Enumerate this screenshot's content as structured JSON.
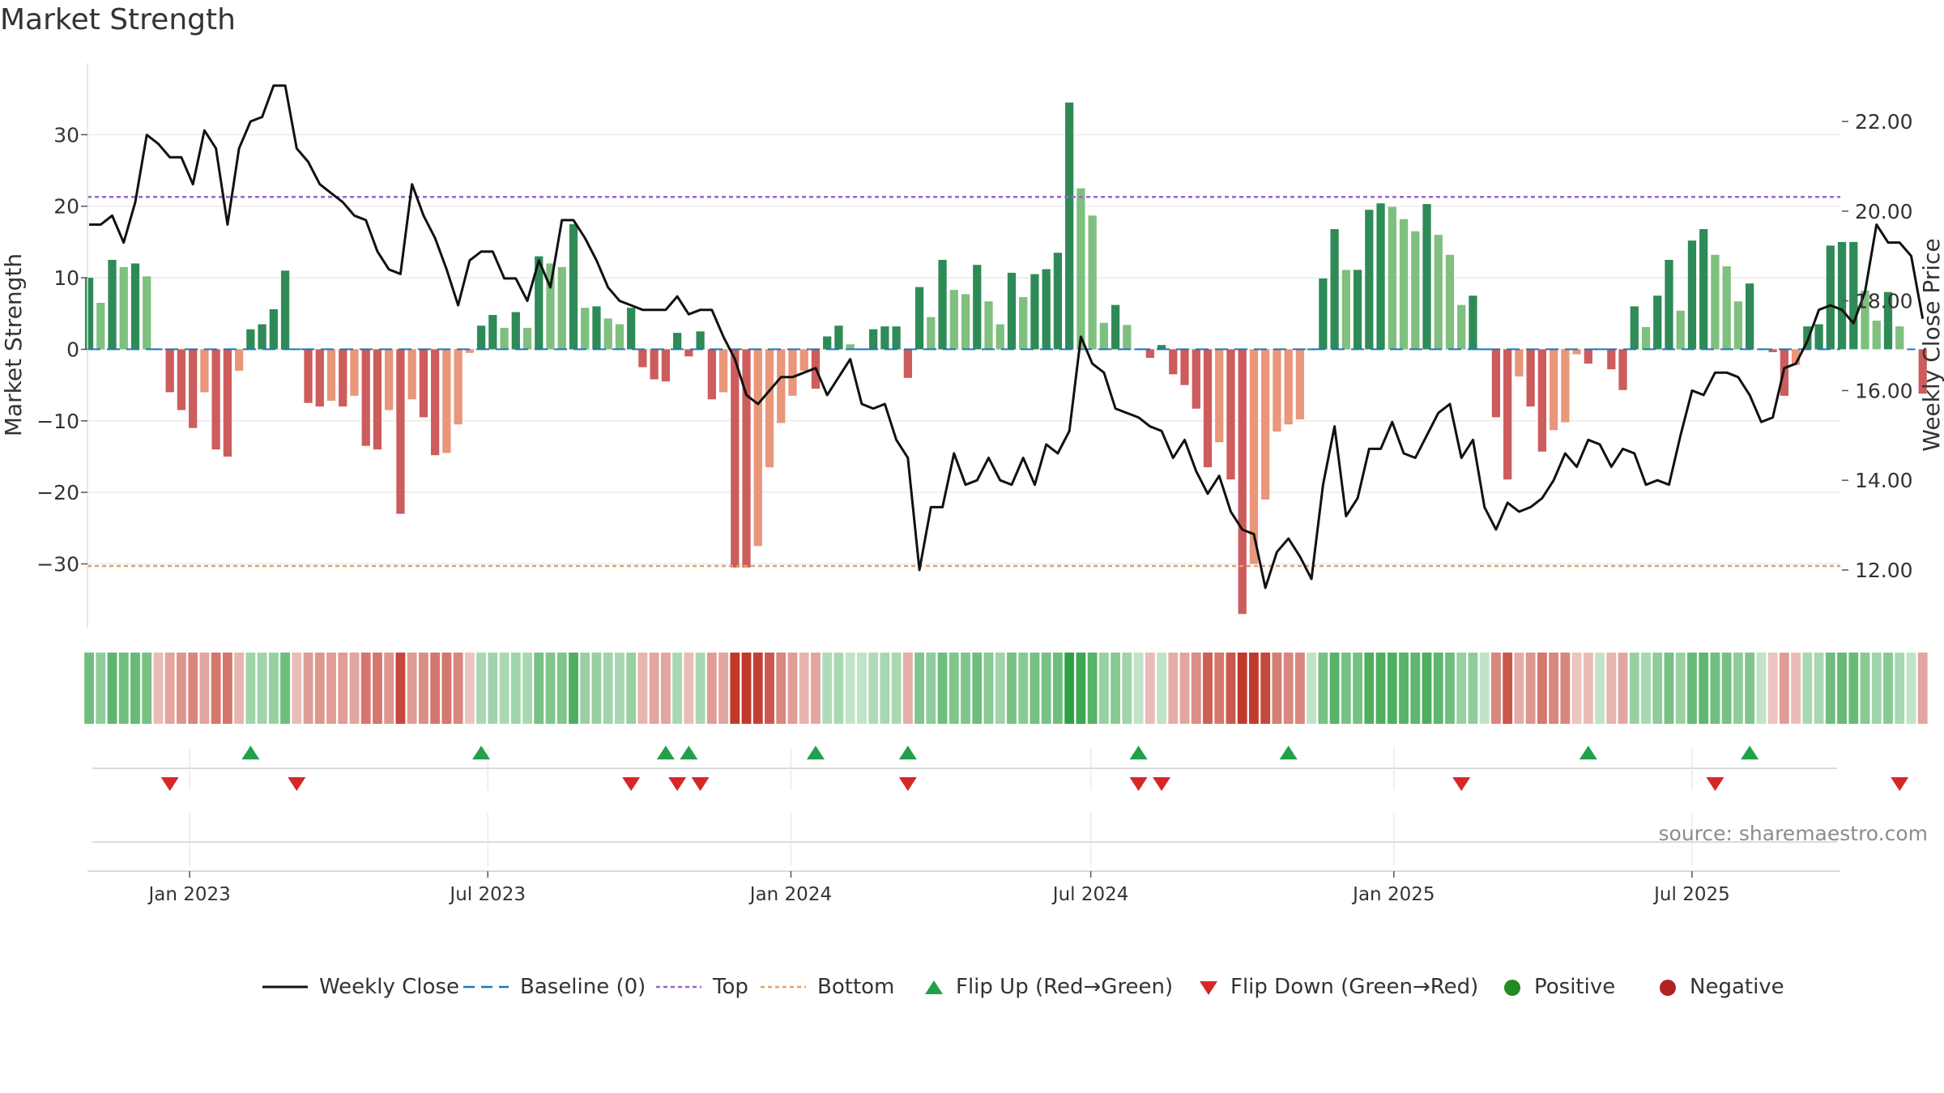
{
  "title": "Market Strength",
  "source": "source: sharemaestro.com",
  "legend": [
    {
      "label": "Weekly Close"
    },
    {
      "label": "Baseline (0)"
    },
    {
      "label": "Top"
    },
    {
      "label": "Bottom"
    },
    {
      "label": "Flip Up (Red→Green)"
    },
    {
      "label": "Flip Down (Green→Red)"
    },
    {
      "label": "Positive"
    },
    {
      "label": "Negative"
    }
  ],
  "colors": {
    "strong_green": "#2e8b57",
    "light_green": "#7fbf7f",
    "strong_red": "#cd5c5c",
    "light_red": "#e9967a",
    "line": "#111111",
    "top": "#9966cc",
    "bottom": "#e8a060",
    "baseline": "#1f77b4",
    "flip_up": "#22a04b",
    "flip_down": "#d62728",
    "positive": "#228b22",
    "negative": "#b22222"
  },
  "chart_data": {
    "type": "bar",
    "title": "Market Strength",
    "ylabel": "Market Strength",
    "y2label": "Weekly Close Price",
    "ylim": [
      -39,
      40
    ],
    "y2lim": [
      10.7,
      23.3
    ],
    "yticks": [
      30,
      20,
      10,
      0,
      -10,
      -20,
      -30
    ],
    "yticklabels": [
      "30",
      "20",
      "10",
      "0",
      "−10",
      "−20",
      "−30"
    ],
    "y2ticks": [
      22,
      20,
      18,
      16,
      14,
      12
    ],
    "y2ticklabels": [
      "22.00",
      "20.00",
      "18.00",
      "16.00",
      "14.00",
      "12.00"
    ],
    "xlim": [
      "2022-10-31",
      "2025-09-29"
    ],
    "xticks": [
      "2023-01-01",
      "2023-07-01",
      "2024-01-01",
      "2024-07-01",
      "2025-01-01",
      "2025-07-01"
    ],
    "xticklabels": [
      "Jan 2023",
      "Jul 2023",
      "Jan 2024",
      "Jul 2024",
      "Jan 2025",
      "Jul 2025"
    ],
    "start_date": "2022-11-01",
    "top": 21.3,
    "bottom": -30.3,
    "baseline": 0,
    "grid": true,
    "legend_position": "bottom",
    "series": [
      {
        "name": "Market Strength",
        "type": "bar",
        "values": [
          10,
          6.5,
          12.5,
          11.5,
          12,
          10.2,
          0,
          -6,
          -8.5,
          -11,
          -6,
          -14,
          -15,
          -3,
          2.8,
          3.5,
          5.6,
          11,
          0,
          -7.5,
          -8,
          -7.2,
          -8,
          -6.5,
          -13.5,
          -14,
          -8.5,
          -23,
          -7,
          -9.5,
          -14.8,
          -14.5,
          -10.5,
          -0.5,
          3.3,
          4.8,
          3,
          5.2,
          3,
          13,
          12,
          11.5,
          17.5,
          5.8,
          6,
          4.3,
          3.5,
          5.8,
          -2.5,
          -4.2,
          -4.5,
          2.3,
          -1,
          2.5,
          -7,
          -6,
          -30.5,
          -30.5,
          -27.5,
          -16.5,
          -10.3,
          -6.5,
          -3,
          -5.5,
          1.8,
          3.3,
          0.7,
          0,
          2.8,
          3.2,
          3.2,
          -4,
          8.7,
          4.5,
          12.5,
          8.3,
          7.7,
          11.8,
          6.7,
          3.5,
          10.7,
          7.3,
          10.5,
          11.2,
          13.5,
          34.5,
          22.5,
          18.7,
          3.7,
          6.2,
          3.4,
          0,
          -1.2,
          0.6,
          -3.5,
          -5,
          -8.3,
          -16.5,
          -13,
          -18.2,
          -37,
          -30,
          -21,
          -11.5,
          -10.5,
          -9.8,
          0,
          9.9,
          16.8,
          11.1,
          11.1,
          19.5,
          20.4,
          19.9,
          18.2,
          16.5,
          20.3,
          16,
          13.2,
          6.2,
          7.5,
          0,
          -9.5,
          -18.2,
          -3.8,
          -8,
          -14.3,
          -11.3,
          -10.2,
          -0.7,
          -2,
          0,
          -2.8,
          -5.7,
          6,
          3.1,
          7.5,
          12.5,
          5.4,
          15.2,
          16.8,
          13.2,
          11.6,
          6.7,
          9.2,
          0,
          -0.4,
          -6.5,
          -2.2,
          3.2,
          3.5,
          14.5,
          15,
          15,
          8.2,
          4,
          8,
          3.2,
          0,
          -6.2
        ]
      },
      {
        "name": "Weekly Close",
        "type": "line",
        "values": [
          19.7,
          19.7,
          19.9,
          19.3,
          20.2,
          21.7,
          21.5,
          21.2,
          21.2,
          20.6,
          21.8,
          21.4,
          19.7,
          21.4,
          22,
          22.1,
          22.8,
          22.8,
          21.4,
          21.1,
          20.6,
          20.4,
          20.2,
          19.9,
          19.8,
          19.1,
          18.7,
          18.6,
          20.6,
          19.9,
          19.4,
          18.7,
          17.9,
          18.9,
          19.1,
          19.1,
          18.5,
          18.5,
          18,
          18.9,
          18.3,
          19.8,
          19.8,
          19.4,
          18.9,
          18.3,
          18,
          17.9,
          17.8,
          17.8,
          17.8,
          18.1,
          17.7,
          17.8,
          17.8,
          17.2,
          16.7,
          15.9,
          15.7,
          16,
          16.3,
          16.3,
          16.4,
          16.5,
          15.9,
          16.3,
          16.7,
          15.7,
          15.6,
          15.7,
          14.9,
          14.5,
          12,
          13.4,
          13.4,
          14.6,
          13.9,
          14,
          14.5,
          14,
          13.9,
          14.5,
          13.9,
          14.8,
          14.6,
          15.1,
          17.2,
          16.6,
          16.4,
          15.6,
          15.5,
          15.4,
          15.2,
          15.1,
          14.5,
          14.9,
          14.2,
          13.7,
          14.1,
          13.3,
          12.9,
          12.8,
          11.6,
          12.4,
          12.7,
          12.3,
          11.8,
          13.9,
          15.2,
          13.2,
          13.6,
          14.7,
          14.7,
          15.3,
          14.6,
          14.5,
          15,
          15.5,
          15.7,
          14.5,
          14.9,
          13.4,
          12.9,
          13.5,
          13.3,
          13.4,
          13.6,
          14,
          14.6,
          14.3,
          14.9,
          14.8,
          14.3,
          14.7,
          14.6,
          13.9,
          14,
          13.9,
          15,
          16,
          15.9,
          16.4,
          16.4,
          16.3,
          15.9,
          15.3,
          15.4,
          16.5,
          16.6,
          17.1,
          17.8,
          17.9,
          17.8,
          17.5,
          18.2,
          19.7,
          19.3,
          19.3,
          19,
          17.6
        ]
      }
    ],
    "heat_strip": [
      0.6,
      0.4,
      0.7,
      0.6,
      0.65,
      0.55,
      -0.15,
      -0.3,
      -0.4,
      -0.5,
      -0.3,
      -0.6,
      -0.6,
      -0.2,
      0.3,
      0.3,
      0.35,
      0.6,
      -0.15,
      -0.35,
      -0.4,
      -0.35,
      -0.35,
      -0.3,
      -0.6,
      -0.6,
      -0.4,
      -0.9,
      -0.35,
      -0.45,
      -0.6,
      -0.6,
      -0.5,
      -0.1,
      0.25,
      0.3,
      0.25,
      0.3,
      0.25,
      0.55,
      0.5,
      0.5,
      0.8,
      0.35,
      0.35,
      0.3,
      0.25,
      0.35,
      -0.2,
      -0.3,
      -0.3,
      0.25,
      -0.15,
      0.25,
      -0.35,
      -0.3,
      -1,
      -1,
      -0.95,
      -0.8,
      -0.5,
      -0.35,
      -0.2,
      -0.3,
      0.2,
      0.25,
      0.1,
      0.1,
      0.2,
      0.25,
      0.25,
      -0.25,
      0.5,
      0.4,
      0.6,
      0.5,
      0.5,
      0.6,
      0.45,
      0.3,
      0.55,
      0.45,
      0.55,
      0.55,
      0.6,
      1,
      0.9,
      0.75,
      0.35,
      0.45,
      0.3,
      0.1,
      -0.15,
      0.1,
      -0.25,
      -0.3,
      -0.45,
      -0.75,
      -0.6,
      -0.8,
      -1,
      -1,
      -0.9,
      -0.55,
      -0.5,
      -0.5,
      0.1,
      0.55,
      0.75,
      0.55,
      0.55,
      0.8,
      0.8,
      0.8,
      0.75,
      0.7,
      0.8,
      0.7,
      0.6,
      0.35,
      0.4,
      0.1,
      -0.5,
      -0.8,
      -0.25,
      -0.4,
      -0.6,
      -0.5,
      -0.5,
      -0.1,
      -0.15,
      0.1,
      -0.2,
      -0.3,
      0.35,
      0.25,
      0.4,
      0.55,
      0.35,
      0.65,
      0.7,
      0.6,
      0.55,
      0.4,
      0.5,
      0.1,
      -0.1,
      -0.35,
      -0.15,
      0.25,
      0.25,
      0.6,
      0.65,
      0.65,
      0.45,
      0.3,
      0.45,
      0.25,
      0.1,
      -0.3
    ],
    "flip_up_weeks": [
      14,
      34,
      50,
      52,
      63,
      71,
      91,
      104,
      130,
      144
    ],
    "flip_down_weeks": [
      7,
      18,
      47,
      51,
      53,
      71,
      91,
      93,
      119,
      141,
      157
    ],
    "positive_weeks": [],
    "negative_weeks": []
  }
}
